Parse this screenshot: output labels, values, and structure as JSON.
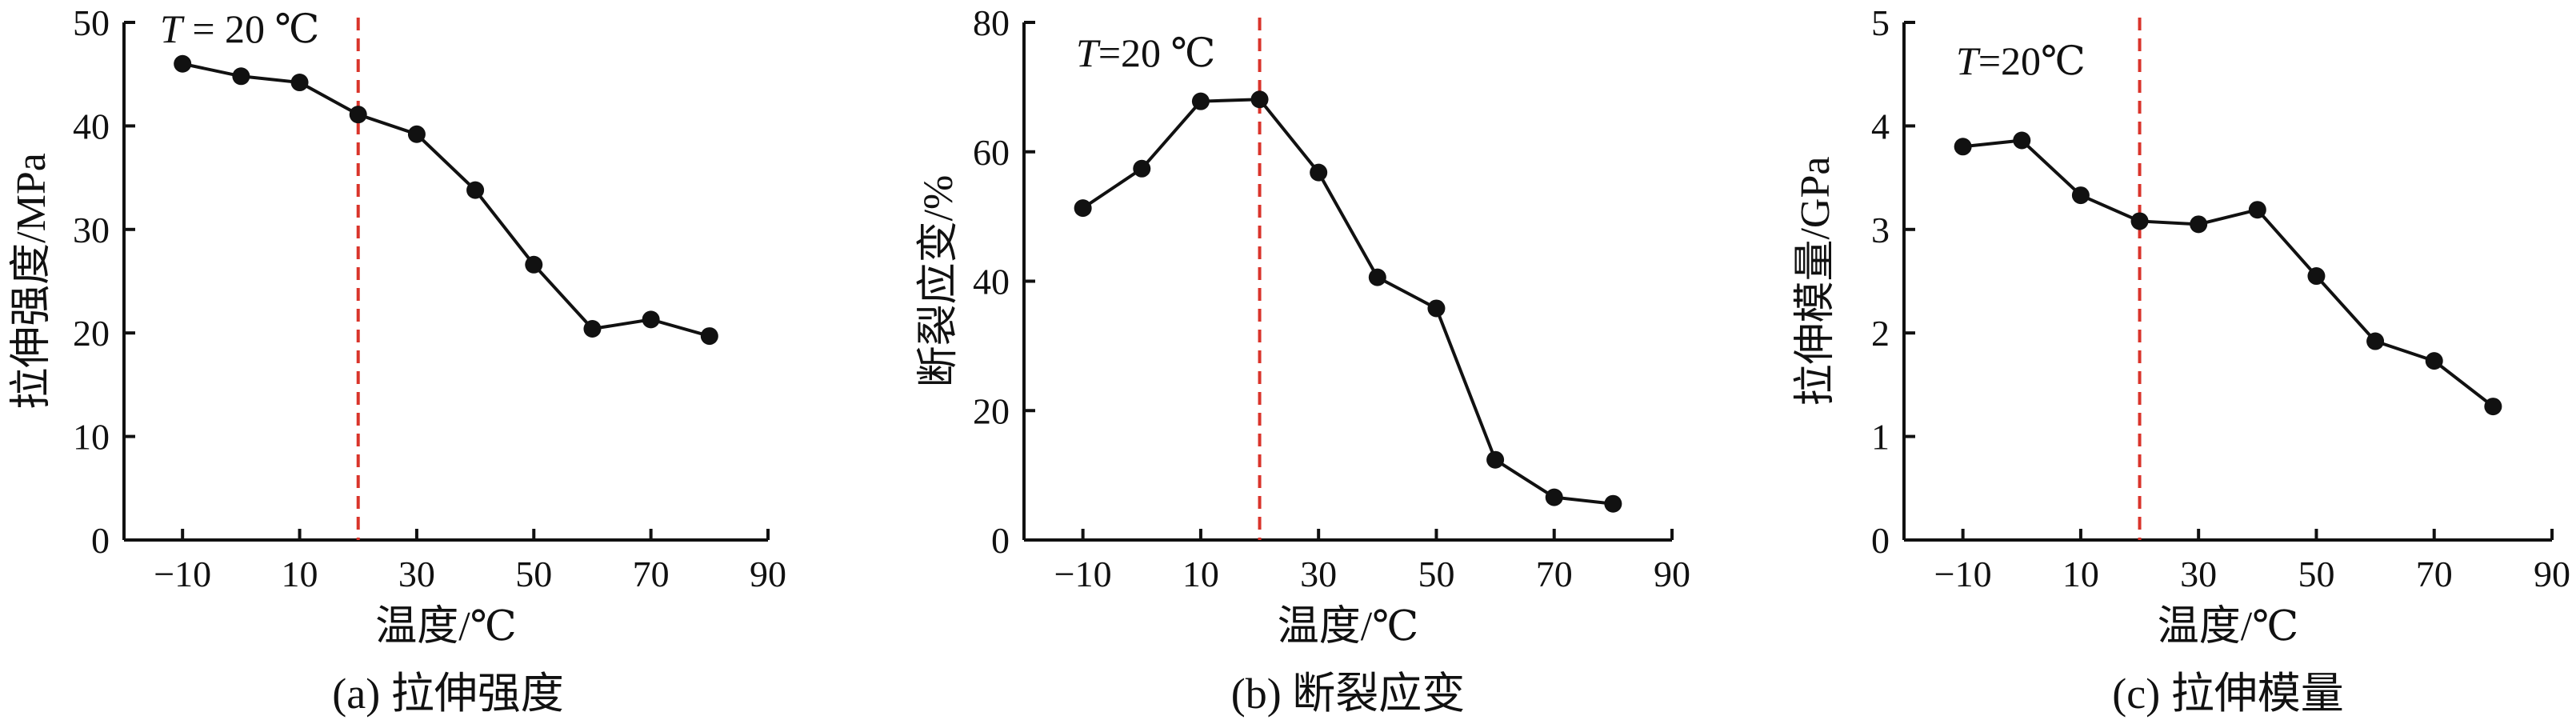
{
  "chart_data": [
    {
      "type": "line",
      "caption": "(a) 拉伸强度",
      "xlabel": "温度/℃",
      "ylabel": "拉伸强度/MPa",
      "annotation": {
        "prefix": "T",
        "text": " = 20 ℃"
      },
      "reference_line_x": 20,
      "xlim": [
        -20,
        90
      ],
      "ylim": [
        0,
        50
      ],
      "xticks": [
        -10,
        10,
        30,
        50,
        70,
        90
      ],
      "xtick_labels": [
        "−10",
        "10",
        "30",
        "50",
        "70",
        "90"
      ],
      "yticks": [
        0,
        10,
        20,
        30,
        40,
        50
      ],
      "ytick_labels": [
        "0",
        "10",
        "20",
        "30",
        "40",
        "50"
      ],
      "x": [
        -10,
        0,
        10,
        20,
        30,
        40,
        50,
        60,
        70,
        80
      ],
      "y": [
        46,
        44.8,
        44.2,
        41.1,
        39.2,
        33.8,
        26.6,
        20.4,
        21.3,
        19.7
      ]
    },
    {
      "type": "line",
      "caption": "(b) 断裂应变",
      "xlabel": "温度/℃",
      "ylabel": "断裂应变/%",
      "annotation": {
        "prefix": "T",
        "text": "=20 ℃"
      },
      "reference_line_x": 20,
      "xlim": [
        -20,
        90
      ],
      "ylim": [
        0,
        80
      ],
      "xticks": [
        -10,
        10,
        30,
        50,
        70,
        90
      ],
      "xtick_labels": [
        "−10",
        "10",
        "30",
        "50",
        "70",
        "90"
      ],
      "yticks": [
        0,
        20,
        40,
        60,
        80
      ],
      "ytick_labels": [
        "0",
        "20",
        "40",
        "60",
        "80"
      ],
      "x": [
        -10,
        0,
        10,
        20,
        30,
        40,
        50,
        60,
        70,
        80
      ],
      "y": [
        51.3,
        57.4,
        67.8,
        68.1,
        56.8,
        40.6,
        35.8,
        12.4,
        6.6,
        5.6
      ]
    },
    {
      "type": "line",
      "caption": "(c) 拉伸模量",
      "xlabel": "温度/℃",
      "ylabel": "拉伸模量/GPa",
      "annotation": {
        "prefix": "T",
        "text": "=20℃"
      },
      "reference_line_x": 20,
      "xlim": [
        -20,
        90
      ],
      "ylim": [
        0,
        5
      ],
      "xticks": [
        -10,
        10,
        30,
        50,
        70,
        90
      ],
      "xtick_labels": [
        "−10",
        "10",
        "30",
        "50",
        "70",
        "90"
      ],
      "yticks": [
        0,
        1,
        2,
        3,
        4,
        5
      ],
      "ytick_labels": [
        "0",
        "1",
        "2",
        "3",
        "4",
        "5"
      ],
      "x": [
        -10,
        0,
        10,
        20,
        30,
        40,
        50,
        60,
        70,
        80
      ],
      "y": [
        3.8,
        3.86,
        3.33,
        3.08,
        3.05,
        3.19,
        2.55,
        1.92,
        1.73,
        1.29
      ]
    }
  ],
  "colors": {
    "series": "#111111",
    "reference_line": "#d9342b"
  }
}
